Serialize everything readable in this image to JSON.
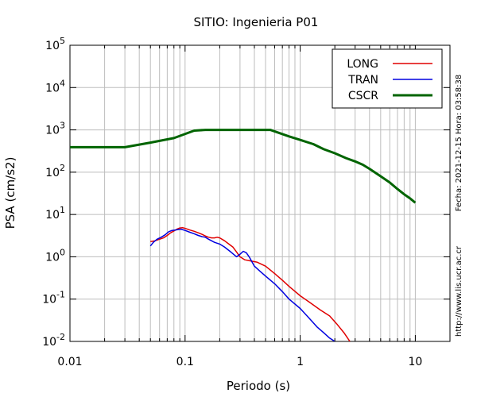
{
  "chart_data": {
    "type": "line",
    "title": "SITIO: Ingenieria P01",
    "xlabel": "Periodo (s)",
    "ylabel": "PSA (cm/s2)",
    "xscale": "log",
    "yscale": "log",
    "xlim": [
      0.01,
      20
    ],
    "ylim": [
      0.01,
      100000
    ],
    "grid": true,
    "legend_position": "top-right",
    "x_tick_labels": [
      {
        "value": 0.01,
        "label": "0.01"
      },
      {
        "value": 0.1,
        "label": "0.1"
      },
      {
        "value": 1,
        "label": "1"
      },
      {
        "value": 10,
        "label": "10"
      }
    ],
    "y_tick_labels": [
      {
        "value": 100000,
        "base": "10",
        "exp": "5"
      },
      {
        "value": 10000,
        "base": "10",
        "exp": "4"
      },
      {
        "value": 1000,
        "base": "10",
        "exp": "3"
      },
      {
        "value": 100,
        "base": "10",
        "exp": "2"
      },
      {
        "value": 10,
        "base": "10",
        "exp": "1"
      },
      {
        "value": 1,
        "base": "10",
        "exp": "0"
      },
      {
        "value": 0.1,
        "base": "10",
        "exp": "-1"
      },
      {
        "value": 0.01,
        "base": "10",
        "exp": "-2"
      }
    ],
    "series": [
      {
        "name": "LONG",
        "color": "#e00000",
        "points": [
          [
            0.05,
            2.3
          ],
          [
            0.055,
            2.4
          ],
          [
            0.06,
            2.6
          ],
          [
            0.065,
            2.8
          ],
          [
            0.07,
            3.2
          ],
          [
            0.075,
            3.7
          ],
          [
            0.08,
            4.1
          ],
          [
            0.085,
            4.5
          ],
          [
            0.09,
            4.8
          ],
          [
            0.095,
            4.9
          ],
          [
            0.1,
            4.7
          ],
          [
            0.11,
            4.3
          ],
          [
            0.12,
            4.0
          ],
          [
            0.13,
            3.7
          ],
          [
            0.14,
            3.4
          ],
          [
            0.15,
            3.1
          ],
          [
            0.16,
            2.9
          ],
          [
            0.17,
            2.8
          ],
          [
            0.18,
            2.8
          ],
          [
            0.19,
            2.9
          ],
          [
            0.2,
            2.8
          ],
          [
            0.22,
            2.4
          ],
          [
            0.24,
            2.0
          ],
          [
            0.26,
            1.7
          ],
          [
            0.28,
            1.3
          ],
          [
            0.3,
            1.0
          ],
          [
            0.33,
            0.85
          ],
          [
            0.37,
            0.8
          ],
          [
            0.42,
            0.75
          ],
          [
            0.5,
            0.6
          ],
          [
            0.6,
            0.4
          ],
          [
            0.7,
            0.28
          ],
          [
            0.8,
            0.2
          ],
          [
            1.0,
            0.12
          ],
          [
            1.2,
            0.085
          ],
          [
            1.5,
            0.055
          ],
          [
            1.8,
            0.04
          ],
          [
            2.1,
            0.025
          ],
          [
            2.4,
            0.016
          ],
          [
            2.7,
            0.01
          ]
        ]
      },
      {
        "name": "TRAN",
        "color": "#0000e0",
        "points": [
          [
            0.05,
            1.8
          ],
          [
            0.053,
            2.2
          ],
          [
            0.057,
            2.6
          ],
          [
            0.062,
            2.9
          ],
          [
            0.067,
            3.3
          ],
          [
            0.072,
            3.9
          ],
          [
            0.077,
            4.2
          ],
          [
            0.082,
            4.3
          ],
          [
            0.087,
            4.4
          ],
          [
            0.092,
            4.5
          ],
          [
            0.1,
            4.2
          ],
          [
            0.11,
            3.8
          ],
          [
            0.12,
            3.5
          ],
          [
            0.13,
            3.2
          ],
          [
            0.14,
            3.0
          ],
          [
            0.15,
            2.9
          ],
          [
            0.16,
            2.6
          ],
          [
            0.18,
            2.2
          ],
          [
            0.2,
            2.0
          ],
          [
            0.22,
            1.7
          ],
          [
            0.25,
            1.3
          ],
          [
            0.28,
            1.0
          ],
          [
            0.3,
            1.15
          ],
          [
            0.32,
            1.35
          ],
          [
            0.34,
            1.25
          ],
          [
            0.36,
            1.0
          ],
          [
            0.4,
            0.6
          ],
          [
            0.45,
            0.45
          ],
          [
            0.5,
            0.35
          ],
          [
            0.6,
            0.23
          ],
          [
            0.7,
            0.15
          ],
          [
            0.8,
            0.1
          ],
          [
            1.0,
            0.06
          ],
          [
            1.2,
            0.035
          ],
          [
            1.4,
            0.022
          ],
          [
            1.6,
            0.016
          ],
          [
            1.8,
            0.012
          ],
          [
            2.0,
            0.01
          ]
        ]
      },
      {
        "name": "CSCR",
        "color": "#006400",
        "points": [
          [
            0.01,
            390
          ],
          [
            0.03,
            390
          ],
          [
            0.05,
            500
          ],
          [
            0.08,
            640
          ],
          [
            0.12,
            960
          ],
          [
            0.15,
            1000
          ],
          [
            0.3,
            1000
          ],
          [
            0.55,
            1000
          ],
          [
            0.8,
            700
          ],
          [
            1.0,
            580
          ],
          [
            1.3,
            460
          ],
          [
            1.6,
            350
          ],
          [
            2.0,
            280
          ],
          [
            2.5,
            215
          ],
          [
            3.0,
            180
          ],
          [
            3.5,
            150
          ],
          [
            4.0,
            120
          ],
          [
            5.0,
            80
          ],
          [
            6.0,
            57
          ],
          [
            7.0,
            40
          ],
          [
            8.0,
            30
          ],
          [
            9.0,
            24
          ],
          [
            10.0,
            19
          ]
        ]
      }
    ]
  },
  "side_texts": {
    "timestamp": "Fecha: 2021-12-15 Hora: 03:58:38",
    "url": "http://www.lis.ucr.ac.cr"
  }
}
